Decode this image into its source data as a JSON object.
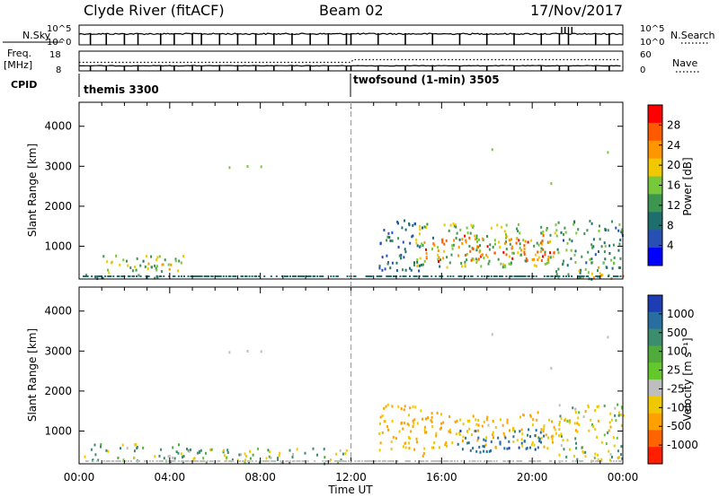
{
  "header": {
    "station": "Clyde River (fitACF)",
    "beam": "Beam 02",
    "date": "17/Nov/2017"
  },
  "top_panels": {
    "nsky_label": "N.Sky",
    "nsky_ticks_left": [
      "10^5",
      "10^0"
    ],
    "nsky_ticks_right": [
      "10^5",
      "10^0"
    ],
    "nsearch_label": "N.Search",
    "freq_label": "Freq.",
    "freq_unit": "[MHz]",
    "freq_ticks": [
      "18",
      "8"
    ],
    "nave_ticks": [
      "60",
      "0"
    ],
    "nave_label": "Nave",
    "cpid_label": "CPID",
    "cpid_modes": [
      {
        "name": "themis 3300",
        "start_hour": 0,
        "end_hour": 12
      },
      {
        "name": "twofsound (1-min) 3505",
        "start_hour": 12,
        "end_hour": 24
      }
    ]
  },
  "x_axis": {
    "label": "Time UT",
    "ticks": [
      "00:00",
      "04:00",
      "08:00",
      "12:00",
      "16:00",
      "20:00",
      "00:00"
    ]
  },
  "power_colorbar": {
    "label": "Power [dB]",
    "ticks": [
      "28",
      "24",
      "20",
      "16",
      "12",
      "8",
      "4"
    ],
    "colors": [
      "#ff0000",
      "#ff5a00",
      "#ff9600",
      "#f0c800",
      "#78c83c",
      "#3c9650",
      "#1e6e6e",
      "#2850b4",
      "#0000ff"
    ]
  },
  "velocity_colorbar": {
    "label": "Velocity [m s⁻¹]",
    "ticks": [
      "1000",
      "500",
      "100",
      "25",
      "-25",
      "-100",
      "-500",
      "-1000"
    ],
    "colors": [
      "#1e3cb4",
      "#286ea0",
      "#3c8c6e",
      "#50aa3c",
      "#64c82d",
      "#bebebe",
      "#f0c800",
      "#ffa000",
      "#ff6400",
      "#ff1e00"
    ]
  },
  "chart_data": [
    {
      "type": "heatmap",
      "title": "",
      "xlabel": "Time UT",
      "ylabel": "Slant Range [km]",
      "xlim": [
        0,
        24
      ],
      "ylim": [
        180,
        4600
      ],
      "y_ticks": [
        1000,
        2000,
        3000,
        4000
      ],
      "quantity": "Power [dB]",
      "range_dB": [
        0,
        30
      ],
      "scatter_regions": [
        {
          "t0": 0.2,
          "t1": 3.8,
          "r0": 200,
          "r1": 320,
          "value": 8
        },
        {
          "t0": 1.0,
          "t1": 4.6,
          "r0": 300,
          "r1": 800,
          "value": 14
        },
        {
          "t0": 3.0,
          "t1": 4.2,
          "r0": 350,
          "r1": 600,
          "value": 20
        },
        {
          "t0": 13.2,
          "t1": 15.2,
          "r0": 400,
          "r1": 1700,
          "value": 7
        },
        {
          "t0": 14.8,
          "t1": 21.0,
          "r0": 500,
          "r1": 1600,
          "value": 14
        },
        {
          "t0": 15.2,
          "t1": 21.0,
          "r0": 650,
          "r1": 1300,
          "value": 25
        },
        {
          "t0": 21.0,
          "t1": 24.0,
          "r0": 200,
          "r1": 1700,
          "value": 10
        },
        {
          "t0": 22.0,
          "t1": 24.0,
          "r0": 200,
          "r1": 500,
          "value": 20
        }
      ]
    },
    {
      "type": "heatmap",
      "title": "",
      "xlabel": "Time UT",
      "ylabel": "Slant Range [km]",
      "xlim": [
        0,
        24
      ],
      "ylim": [
        180,
        4600
      ],
      "y_ticks": [
        1000,
        2000,
        3000,
        4000
      ],
      "quantity": "Velocity [m s⁻¹]",
      "range_ms": [
        -1000,
        1000
      ],
      "scatter_regions": [
        {
          "t0": 0.2,
          "t1": 4.6,
          "r0": 250,
          "r1": 700,
          "value": 60
        },
        {
          "t0": 4.6,
          "t1": 12.0,
          "r0": 200,
          "r1": 600,
          "value": -40
        },
        {
          "t0": 13.2,
          "t1": 15.2,
          "r0": 400,
          "r1": 1700,
          "value": -400
        },
        {
          "t0": 15.2,
          "t1": 21.0,
          "r0": 600,
          "r1": 1500,
          "value": -300
        },
        {
          "t0": 16.5,
          "t1": 20.5,
          "r0": 500,
          "r1": 1100,
          "value": 500
        },
        {
          "t0": 21.0,
          "t1": 24.0,
          "r0": 200,
          "r1": 1700,
          "value": -100
        }
      ]
    }
  ]
}
